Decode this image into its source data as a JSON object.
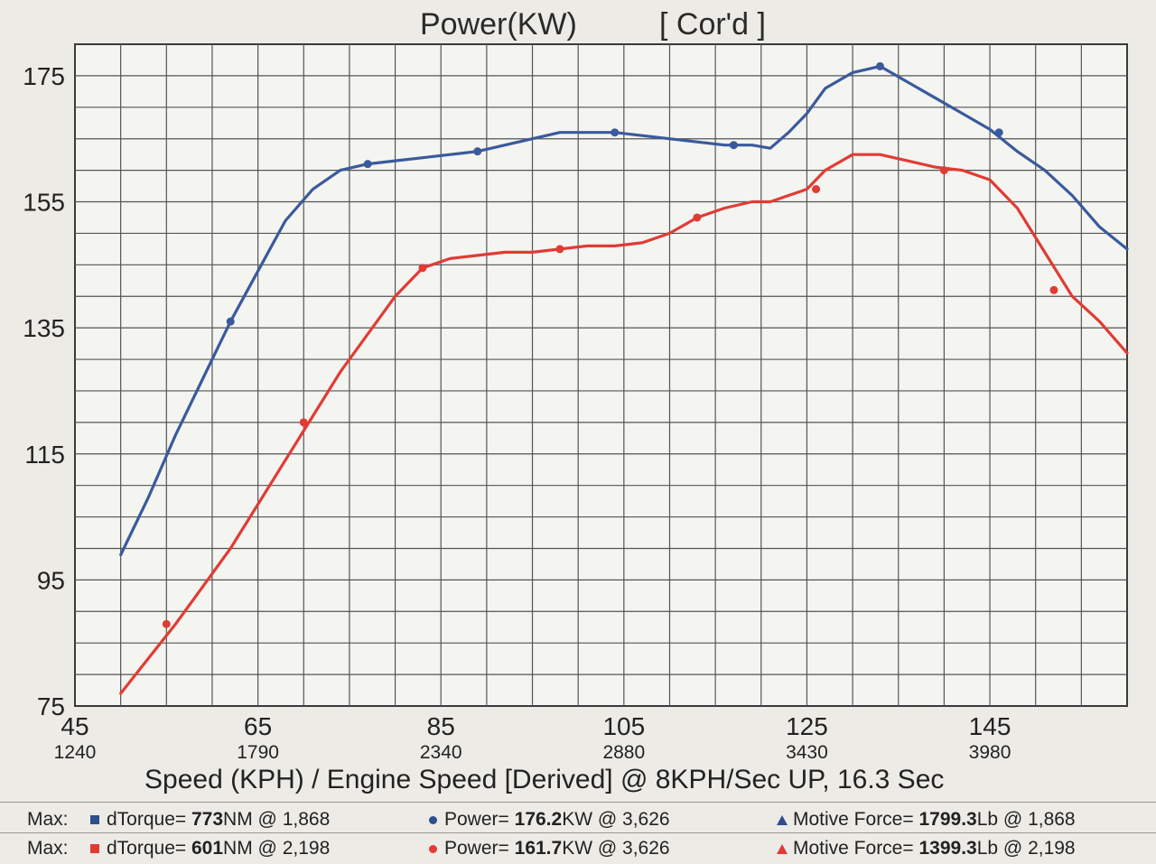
{
  "chart_data": {
    "type": "line",
    "title": "Power(KW)",
    "title_suffix": "[ Cor'd ]",
    "xlabel": "Speed (KPH) / Engine Speed [Derived] @ 8KPH/Sec UP, 16.3 Sec",
    "ylabel": "",
    "xlim": [
      45,
      160
    ],
    "ylim": [
      75,
      180
    ],
    "x_ticks": [
      {
        "value": 45,
        "label": "45",
        "sub": "1240"
      },
      {
        "value": 65,
        "label": "65",
        "sub": "1790"
      },
      {
        "value": 85,
        "label": "85",
        "sub": "2340"
      },
      {
        "value": 105,
        "label": "105",
        "sub": "2880"
      },
      {
        "value": 125,
        "label": "125",
        "sub": "3430"
      },
      {
        "value": 145,
        "label": "145",
        "sub": "3980"
      }
    ],
    "y_ticks": [
      75,
      95,
      115,
      135,
      155,
      175
    ],
    "grid": true,
    "series": [
      {
        "color": "#3a5a9c",
        "points": [
          [
            50,
            99
          ],
          [
            53,
            108
          ],
          [
            56,
            118
          ],
          [
            59,
            127
          ],
          [
            62,
            136
          ],
          [
            65,
            144
          ],
          [
            68,
            152
          ],
          [
            71,
            157
          ],
          [
            74,
            160
          ],
          [
            77,
            161
          ],
          [
            80,
            161.5
          ],
          [
            83,
            162
          ],
          [
            86,
            162.5
          ],
          [
            89,
            163
          ],
          [
            92,
            164
          ],
          [
            95,
            165
          ],
          [
            98,
            166
          ],
          [
            101,
            166
          ],
          [
            104,
            166
          ],
          [
            107,
            165.5
          ],
          [
            110,
            165
          ],
          [
            113,
            164.5
          ],
          [
            116,
            164
          ],
          [
            119,
            164
          ],
          [
            121,
            163.5
          ],
          [
            123,
            166
          ],
          [
            125,
            169
          ],
          [
            127,
            173
          ],
          [
            130,
            175.5
          ],
          [
            133,
            176.5
          ],
          [
            136,
            174
          ],
          [
            139,
            171.5
          ],
          [
            142,
            169
          ],
          [
            145,
            166.5
          ],
          [
            148,
            163
          ],
          [
            151,
            160
          ],
          [
            154,
            156
          ],
          [
            157,
            151
          ],
          [
            160,
            147.5
          ]
        ],
        "markers": [
          [
            62,
            136
          ],
          [
            77,
            161
          ],
          [
            89,
            163
          ],
          [
            104,
            166
          ],
          [
            117,
            164
          ],
          [
            133,
            176.5
          ],
          [
            146,
            166
          ]
        ]
      },
      {
        "color": "#e03c34",
        "points": [
          [
            50,
            77
          ],
          [
            53,
            82.5
          ],
          [
            56,
            88
          ],
          [
            59,
            94
          ],
          [
            62,
            100
          ],
          [
            65,
            107
          ],
          [
            68,
            114
          ],
          [
            71,
            121
          ],
          [
            74,
            128
          ],
          [
            77,
            134
          ],
          [
            80,
            140
          ],
          [
            83,
            144.5
          ],
          [
            86,
            146
          ],
          [
            89,
            146.5
          ],
          [
            92,
            147
          ],
          [
            95,
            147
          ],
          [
            98,
            147.5
          ],
          [
            101,
            148
          ],
          [
            104,
            148
          ],
          [
            107,
            148.5
          ],
          [
            110,
            150
          ],
          [
            113,
            152.5
          ],
          [
            116,
            154
          ],
          [
            119,
            155
          ],
          [
            121,
            155
          ],
          [
            123,
            156
          ],
          [
            125,
            157
          ],
          [
            127,
            160
          ],
          [
            130,
            162.5
          ],
          [
            133,
            162.5
          ],
          [
            136,
            161.5
          ],
          [
            139,
            160.5
          ],
          [
            142,
            160
          ],
          [
            145,
            158.5
          ],
          [
            148,
            154
          ],
          [
            151,
            147
          ],
          [
            154,
            140
          ],
          [
            157,
            136
          ],
          [
            160,
            131
          ]
        ],
        "markers": [
          [
            55,
            88
          ],
          [
            70,
            120
          ],
          [
            83,
            144.5
          ],
          [
            98,
            147.5
          ],
          [
            113,
            152.5
          ],
          [
            126,
            157
          ],
          [
            140,
            160
          ],
          [
            152,
            141
          ]
        ]
      }
    ]
  },
  "footer": {
    "rows": [
      {
        "max_label": "Max:",
        "color": "#2d4e8f",
        "torque_prefix": "dTorque=",
        "torque_value": "773",
        "torque_suffix": "NM @ 1,868",
        "power_prefix": "Power=",
        "power_value": "176.2",
        "power_suffix": "KW @ 3,626",
        "force_prefix": "Motive Force=",
        "force_value": "1799.3",
        "force_suffix": "Lb @ 1,868"
      },
      {
        "max_label": "Max:",
        "color": "#e03c34",
        "torque_prefix": "dTorque=",
        "torque_value": "601",
        "torque_suffix": "NM @ 2,198",
        "power_prefix": "Power=",
        "power_value": "161.7",
        "power_suffix": "KW @ 3,626",
        "force_prefix": "Motive Force=",
        "force_value": "1399.3",
        "force_suffix": "Lb @ 2,198"
      }
    ]
  }
}
